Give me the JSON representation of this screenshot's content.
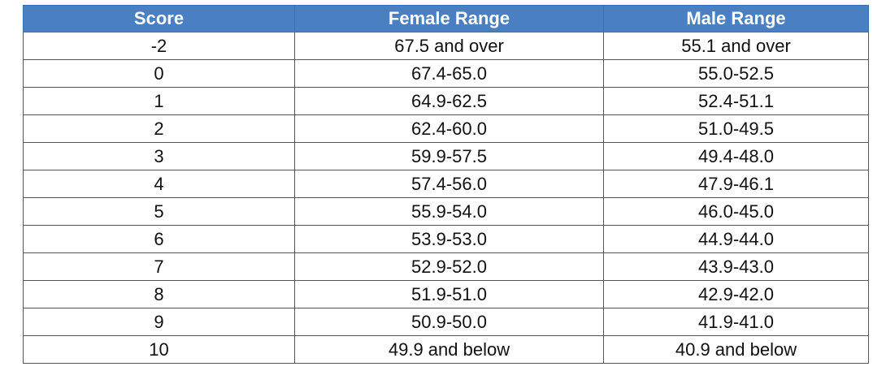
{
  "table": {
    "headers": [
      "Score",
      "Female Range",
      "Male Range"
    ],
    "rows": [
      [
        "-2",
        "67.5 and over",
        "55.1 and over"
      ],
      [
        "0",
        "67.4-65.0",
        "55.0-52.5"
      ],
      [
        "1",
        "64.9-62.5",
        "52.4-51.1"
      ],
      [
        "2",
        "62.4-60.0",
        "51.0-49.5"
      ],
      [
        "3",
        "59.9-57.5",
        "49.4-48.0"
      ],
      [
        "4",
        "57.4-56.0",
        "47.9-46.1"
      ],
      [
        "5",
        "55.9-54.0",
        "46.0-45.0"
      ],
      [
        "6",
        "53.9-53.0",
        "44.9-44.0"
      ],
      [
        "7",
        "52.9-52.0",
        "43.9-43.0"
      ],
      [
        "8",
        "51.9-51.0",
        "42.9-42.0"
      ],
      [
        "9",
        "50.9-50.0",
        "41.9-41.0"
      ],
      [
        "10",
        "49.9 and below",
        "40.9 and below"
      ]
    ]
  }
}
